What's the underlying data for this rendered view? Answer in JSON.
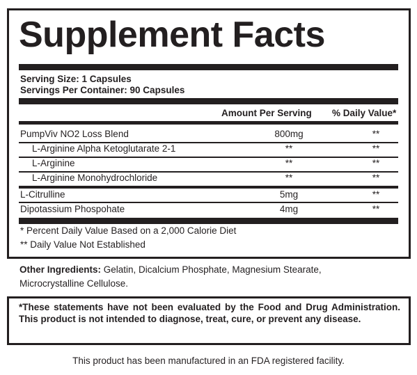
{
  "header": {
    "title": "Supplement Facts"
  },
  "serving": {
    "size": "Serving Size: 1 Capsules",
    "per_container": "Servings Per Container:  90 Capsules"
  },
  "table": {
    "columns": [
      "Amount Per Serving",
      "% Daily Value*"
    ],
    "rows": [
      {
        "name": "PumpViv NO2 Loss Blend",
        "amount": "800mg",
        "dv": "**",
        "ingredients": [
          {
            "name": "L-Arginine Alpha Ketoglutarate 2-1",
            "amount": "**",
            "dv": "**"
          },
          {
            "name": "L-Arginine",
            "amount": "**",
            "dv": "**"
          },
          {
            "name": "L-Arginine Monohydrochloride",
            "amount": "**",
            "dv": "**"
          }
        ]
      },
      {
        "name": "L-Citrulline",
        "amount": "5mg",
        "dv": "**"
      },
      {
        "name": "Dipotassium Phospohate",
        "amount": "4mg",
        "dv": "**"
      }
    ]
  },
  "footnotes": [
    "* Percent Daily Value Based on a 2,000 Calorie Diet",
    "** Daily Value Not Established"
  ],
  "other_ingredients": {
    "label": "Other Ingredients:",
    "text": "Gelatin, Dicalcium Phosphate, Magnesium Stearate, Microcrystalline Cellulose."
  },
  "disclaimer": "*These statements have not been evaluated by the Food and Drug Administration. This product is not intended to diagnose, treat, cure, or prevent any disease.",
  "footer": "This product has been manufactured in an FDA registered facility."
}
